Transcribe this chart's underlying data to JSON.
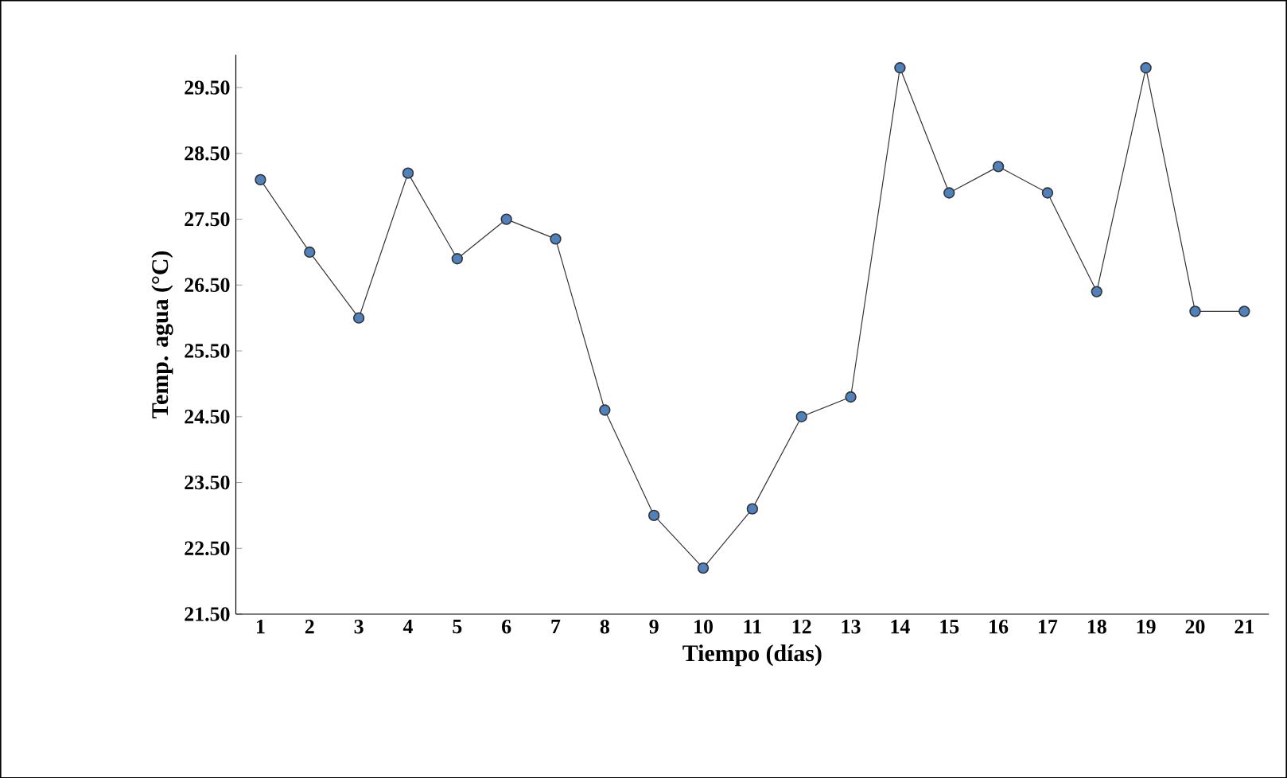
{
  "chart_data": {
    "type": "line",
    "xlabel": "Tiempo (días)",
    "ylabel": "Temp. agua  (°C)",
    "categories": [
      "1",
      "2",
      "3",
      "4",
      "5",
      "6",
      "7",
      "8",
      "9",
      "10",
      "11",
      "12",
      "13",
      "14",
      "15",
      "16",
      "17",
      "18",
      "19",
      "20",
      "21"
    ],
    "series": [
      {
        "color": "#4f81bd",
        "values": [
          28.1,
          27.0,
          26.0,
          28.2,
          26.9,
          27.5,
          27.2,
          24.6,
          23.0,
          22.2,
          23.1,
          24.5,
          24.8,
          29.8,
          27.9,
          28.3,
          27.9,
          26.4,
          29.8,
          26.1,
          26.1
        ]
      }
    ],
    "ylim": [
      21.5,
      30.0
    ],
    "yticks": [
      {
        "value": 21.5,
        "label": "21.50"
      },
      {
        "value": 22.5,
        "label": "22.50"
      },
      {
        "value": 23.5,
        "label": "23.50"
      },
      {
        "value": 24.5,
        "label": "24.50"
      },
      {
        "value": 25.5,
        "label": "25.50"
      },
      {
        "value": 26.5,
        "label": "26.50"
      },
      {
        "value": 27.5,
        "label": "27.50"
      },
      {
        "value": 28.5,
        "label": "28.50"
      },
      {
        "value": 29.5,
        "label": "29.50"
      }
    ],
    "marker": "circle",
    "line_style": "solid",
    "grid": false
  }
}
